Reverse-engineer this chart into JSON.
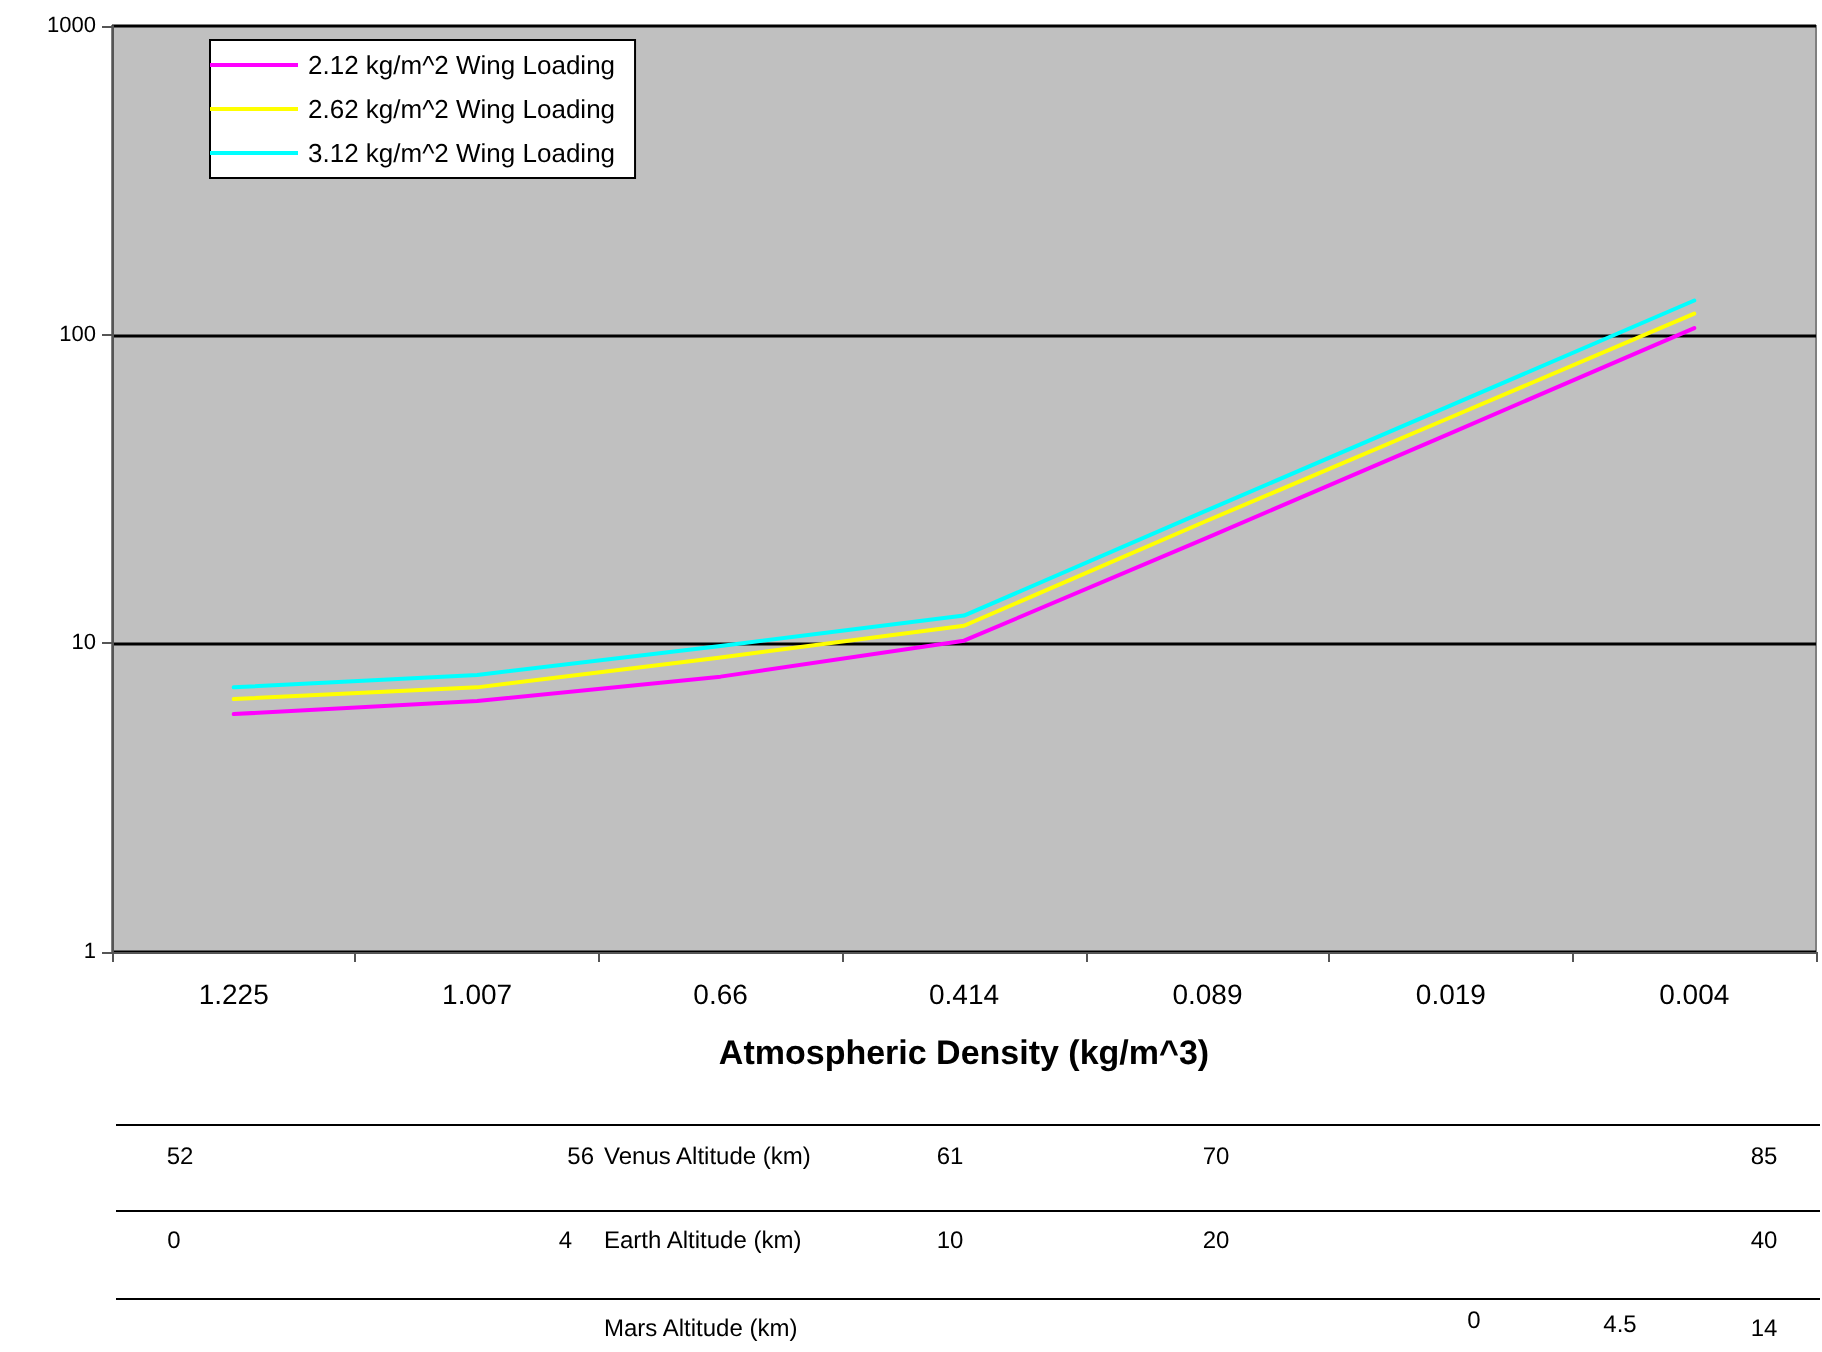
{
  "chart_data": {
    "type": "line",
    "xlabel": "Atmospheric Density (kg/m^3)",
    "categories": [
      "1.225",
      "1.007",
      "0.66",
      "0.414",
      "0.089",
      "0.019",
      "0.004"
    ],
    "series": [
      {
        "name": "2.12 kg/m^2 Wing Loading",
        "color": "#ff00ff",
        "values": [
          5.9,
          6.5,
          7.8,
          10.2,
          22,
          48,
          105
        ]
      },
      {
        "name": "2.62 kg/m^2 Wing Loading",
        "color": "#ffff00",
        "values": [
          6.6,
          7.2,
          9.0,
          11.4,
          25,
          54,
          117
        ]
      },
      {
        "name": "3.12 kg/m^2 Wing Loading",
        "color": "#00ffff",
        "values": [
          7.2,
          7.9,
          9.8,
          12.3,
          27,
          59,
          129
        ]
      }
    ],
    "log": "y",
    "ylim": [
      1,
      1000
    ],
    "yticks": [
      1,
      10,
      100,
      1000
    ],
    "grid": "y",
    "legend": "top left",
    "marker": "none",
    "line_style": "solid",
    "annotations": [
      "52",
      "56",
      "Venus Altitude (km)",
      "61",
      "70",
      "85",
      "0",
      "4",
      "Earth Altitude (km)",
      "10",
      "20",
      "40",
      "Mars Altitude (km)",
      "0",
      "4.5",
      "14"
    ]
  }
}
